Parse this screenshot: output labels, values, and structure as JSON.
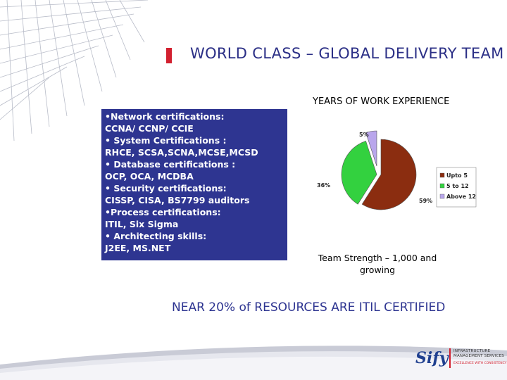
{
  "slide": {
    "title": "WORLD CLASS – GLOBAL DELIVERY TEAM",
    "subheading": "NEAR 20% of RESOURCES ARE ITIL CERTIFIED",
    "caption": "Team Strength – 1,000 and growing"
  },
  "certifications": [
    {
      "bullet": "•",
      "text": "Network certifications:"
    },
    {
      "bullet": "",
      "text": "CCNA/ CCNP/ CCIE"
    },
    {
      "bullet": "•",
      "text": " System Certifications :"
    },
    {
      "bullet": "",
      "text": "RHCE, SCSA,SCNA,MCSE,MCSD"
    },
    {
      "bullet": "•",
      "text": " Database certifications :"
    },
    {
      "bullet": "",
      "text": "OCP, OCA, MCDBA"
    },
    {
      "bullet": "•",
      "text": " Security certifications:"
    },
    {
      "bullet": "",
      "text": "CISSP, CISA, BS7799 auditors"
    },
    {
      "bullet": "•",
      "text": "Process certifications:"
    },
    {
      "bullet": "",
      "text": "ITIL, Six Sigma"
    },
    {
      "bullet": "•",
      "text": "  Architecting skills:"
    },
    {
      "bullet": "",
      "text": "J2EE, MS.NET"
    }
  ],
  "chart_data": {
    "type": "pie",
    "title": "YEARS OF WORK EXPERIENCE",
    "categories": [
      "Upto 5",
      "5 to 12",
      "Above 12"
    ],
    "values": [
      59,
      36,
      5
    ],
    "data_labels": [
      "59%",
      "36%",
      "5%"
    ],
    "colors": [
      "#8b2d10",
      "#33d13f",
      "#b9a6ec"
    ],
    "legend_position": "right",
    "exploded": true
  },
  "logo": {
    "brand": "Sify",
    "line1": "INFRASTRUCTURE",
    "line2": "MANAGEMENT SERVICES",
    "tagline": "EXCELLENCE WITH CONSISTENCY"
  },
  "colors": {
    "title_blue": "#2b2f86",
    "box_blue": "#2e3591",
    "accent_red": "#d2202f"
  }
}
